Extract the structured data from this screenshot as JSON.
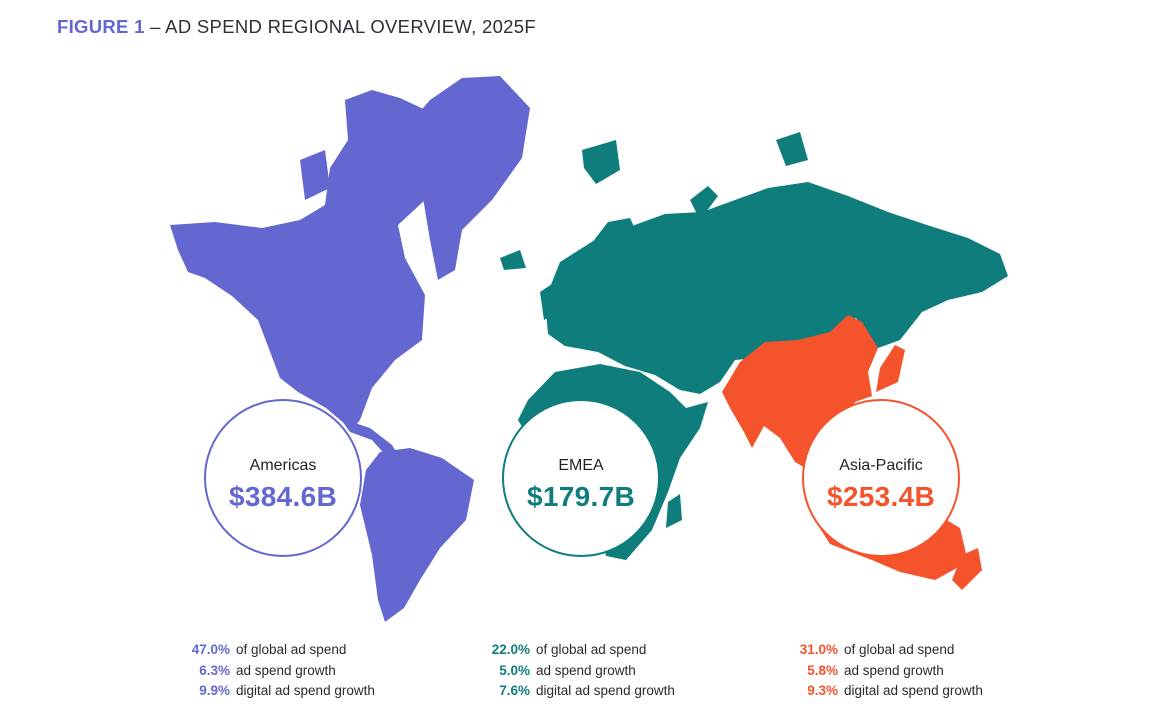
{
  "title": {
    "label": "FIGURE 1",
    "text": "– AD SPEND REGIONAL OVERVIEW, 2025F"
  },
  "colors": {
    "americas": "#6467cf",
    "emea": "#0f7d7b",
    "asia_pacific": "#f4532c"
  },
  "regions": [
    {
      "name": "Americas",
      "value": "$384.6B",
      "stats": [
        {
          "value": "47.0%",
          "label": "of global ad spend"
        },
        {
          "value": "6.3%",
          "label": "ad spend growth"
        },
        {
          "value": "9.9%",
          "label": "digital ad spend growth"
        }
      ]
    },
    {
      "name": "EMEA",
      "value": "$179.7B",
      "stats": [
        {
          "value": "22.0%",
          "label": "of global ad spend"
        },
        {
          "value": "5.0%",
          "label": "ad spend growth"
        },
        {
          "value": "7.6%",
          "label": "digital ad spend growth"
        }
      ]
    },
    {
      "name": "Asia-Pacific",
      "value": "$253.4B",
      "stats": [
        {
          "value": "31.0%",
          "label": "of global ad spend"
        },
        {
          "value": "5.8%",
          "label": "ad spend growth"
        },
        {
          "value": "9.3%",
          "label": "digital ad spend growth"
        }
      ]
    }
  ]
}
